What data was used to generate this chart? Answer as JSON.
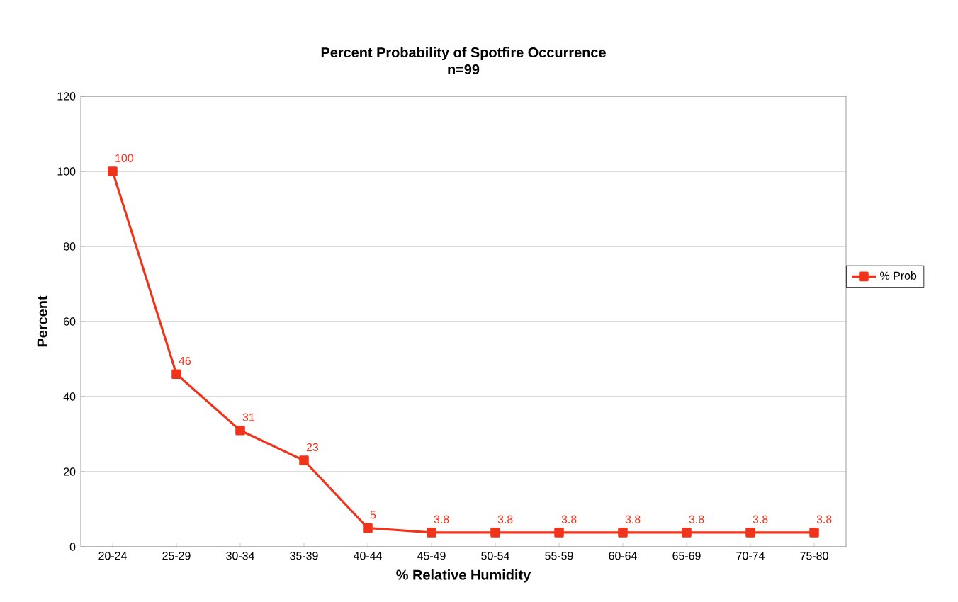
{
  "chart_data": {
    "type": "line",
    "title": "Percent Probability of Spotfire Occurrence",
    "subtitle": "n=99",
    "xlabel": "% Relative Humidity",
    "ylabel": "Percent",
    "categories": [
      "20-24",
      "25-29",
      "30-34",
      "35-39",
      "40-44",
      "45-49",
      "50-54",
      "55-59",
      "60-64",
      "65-69",
      "70-74",
      "75-80"
    ],
    "series": [
      {
        "name": "% Prob",
        "color": "#f0341c",
        "values": [
          100,
          46,
          31,
          23,
          5,
          3.8,
          3.8,
          3.8,
          3.8,
          3.8,
          3.8,
          3.8
        ]
      }
    ],
    "ylim": [
      0,
      120
    ],
    "yticks": [
      0,
      20,
      40,
      60,
      80,
      100,
      120
    ],
    "grid": "y",
    "legend": "right",
    "marker": "square",
    "line_style": "solid",
    "data_labels": true
  }
}
